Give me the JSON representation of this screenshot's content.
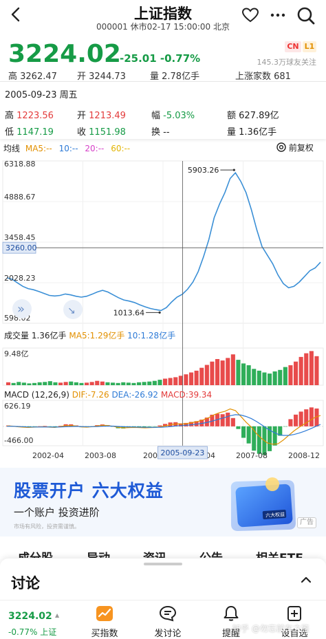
{
  "header": {
    "title": "上证指数",
    "subtitle": "000001 休市02-17 15:00:00 北京",
    "back_icon": "back-arrow-icon",
    "fav_icon": "heart-icon",
    "more_icon": "more-dots-icon",
    "search_icon": "search-icon"
  },
  "quote": {
    "price": "3224.02",
    "change": "-25.01 -0.77%",
    "badge_market": "CN",
    "badge_level": "L1",
    "followers": "145.3万球友关注"
  },
  "partial_row": {
    "high": "高 3262.47",
    "open": "开 3244.73",
    "volume": "量 2.78亿手",
    "rising": "上涨家数 681"
  },
  "info_card": {
    "date": "2005-09-23 周五",
    "high_label": "高",
    "high_value": "1223.56",
    "open_label": "开",
    "open_value": "1213.49",
    "amp_label": "幅",
    "amp_value": "-5.03%",
    "amount_label": "额",
    "amount_value": "627.89亿",
    "low_label": "低",
    "low_value": "1147.19",
    "close_label": "收",
    "close_value": "1151.98",
    "turnover_label": "换",
    "turnover_value": "--",
    "volume_label": "量",
    "volume_value": "1.36亿手"
  },
  "ma_legend": {
    "label": "均线",
    "ma5": "MA5:--",
    "ma10": "10:--",
    "ma20": "20:--",
    "ma60": "60:--",
    "fuquan": "前复权",
    "fuquan_icon": "settings-circle-icon"
  },
  "chart_data": {
    "type": "line",
    "y_ticks": [
      "6318.88",
      "4888.67",
      "3458.45",
      "2028.23",
      "598.02"
    ],
    "ylim": [
      598.02,
      6318.88
    ],
    "cursor_price": "3260.00",
    "high_annotation": "5903.26",
    "low_annotation": "1013.64",
    "x_ticks": [
      "2002-04",
      "2003-08",
      "2004-",
      "-04",
      "2007-08",
      "2008-12"
    ],
    "cursor_date": "2005-09-23",
    "series": [
      {
        "values": [
          2200,
          2150,
          2020,
          1900,
          1820,
          1780,
          1720,
          1650,
          1580,
          1560,
          1580,
          1630,
          1600,
          1550,
          1520,
          1550,
          1620,
          1700,
          1760,
          1700,
          1600,
          1500,
          1420,
          1380,
          1330,
          1250,
          1180,
          1120,
          1080,
          1050,
          1150,
          1350,
          1520,
          1620,
          1800,
          2050,
          2420,
          2950,
          3550,
          4320,
          4800,
          5200,
          5700,
          5903,
          5600,
          5200,
          4600,
          3900,
          3300,
          3000,
          2700,
          2300,
          2000,
          1850,
          1900,
          2050,
          2250,
          2450,
          2550,
          2750
        ]
      }
    ],
    "volume_label": "成交量",
    "volume_value": "1.36亿手",
    "volume_ma5": "MA5:1.29亿手",
    "volume_ma10": "10:1.28亿手",
    "volume_max": "9.48亿",
    "volume": [
      0.8,
      0.6,
      0.9,
      0.7,
      0.5,
      0.6,
      0.8,
      0.9,
      1.1,
      0.8,
      0.7,
      0.9,
      1.0,
      0.8,
      0.6,
      0.7,
      0.9,
      1.2,
      1.0,
      0.8,
      0.7,
      0.6,
      0.8,
      0.7,
      0.6,
      0.8,
      0.9,
      1.0,
      1.2,
      1.5,
      1.8,
      2.0,
      2.2,
      2.6,
      3.0,
      3.5,
      4.0,
      4.8,
      5.6,
      6.5,
      7.2,
      6.8,
      7.5,
      8.5,
      7.0,
      6.0,
      5.5,
      4.5,
      4.0,
      3.5,
      3.2,
      3.8,
      4.2,
      5.0,
      5.5,
      6.5,
      7.8,
      8.8,
      9.4,
      8.0
    ],
    "macd_label": "MACD",
    "macd_params": "(12,26,9)",
    "macd_dif": "DIF:-7.26",
    "macd_dea": "DEA:-26.92",
    "macd_value": "MACD:39.34",
    "macd_top": "626.19",
    "macd_bottom": "-466.00",
    "dif": [
      10,
      5,
      -10,
      -20,
      -25,
      -20,
      -15,
      -10,
      -20,
      -25,
      -10,
      15,
      20,
      10,
      -15,
      -20,
      -10,
      10,
      25,
      20,
      0,
      -25,
      -35,
      -30,
      -25,
      -30,
      -35,
      -30,
      -25,
      -10,
      15,
      45,
      60,
      55,
      70,
      95,
      120,
      160,
      210,
      280,
      330,
      360,
      420,
      380,
      240,
      100,
      -20,
      -180,
      -300,
      -400,
      -430,
      -420,
      -330,
      -220,
      -110,
      -20,
      60,
      140,
      220,
      260
    ],
    "dea": [
      0,
      2,
      -2,
      -8,
      -14,
      -16,
      -16,
      -15,
      -16,
      -18,
      -16,
      -10,
      -4,
      -1,
      -4,
      -7,
      -8,
      -4,
      2,
      6,
      5,
      -2,
      -9,
      -13,
      -16,
      -19,
      -22,
      -24,
      -24,
      -21,
      -14,
      -2,
      10,
      19,
      29,
      42,
      58,
      79,
      105,
      140,
      178,
      214,
      255,
      280,
      272,
      238,
      186,
      113,
      30,
      -56,
      -131,
      -189,
      -217,
      -218,
      -196,
      -161,
      -117,
      -65,
      -8,
      45
    ],
    "macd_hist": [
      20,
      6,
      -16,
      -24,
      -22,
      -8,
      2,
      10,
      -8,
      -14,
      12,
      50,
      48,
      22,
      -22,
      -26,
      -4,
      28,
      46,
      28,
      -10,
      -46,
      -52,
      -34,
      -18,
      -22,
      -26,
      -12,
      -2,
      22,
      58,
      94,
      100,
      72,
      82,
      106,
      124,
      162,
      210,
      280,
      304,
      292,
      330,
      200,
      -64,
      -276,
      -412,
      -586,
      -660,
      -688,
      -598,
      -462,
      -226,
      -4,
      172,
      282,
      354,
      410,
      456,
      430
    ]
  },
  "ad": {
    "title": "股票开户 六大权益",
    "subtitle": "一个账户 投资进阶",
    "note": "市场有风险，投资需谨慎。",
    "tag": "广告",
    "card_label": "六大权益"
  },
  "tabs": [
    "成分股",
    "异动",
    "资讯",
    "公告",
    "相关ETF"
  ],
  "sheet": {
    "title": "讨论",
    "chevron_icon": "chevron-up-icon"
  },
  "bottom_bar": {
    "price": "3224.02",
    "change": "-0.77% 上证",
    "items": [
      {
        "label": "买指数",
        "icon": "trend-chart-icon"
      },
      {
        "label": "发讨论",
        "icon": "chat-bubble-icon"
      },
      {
        "label": "提醒",
        "icon": "bell-icon"
      },
      {
        "label": "设自选",
        "icon": "add-watchlist-icon"
      }
    ]
  },
  "watermark": "知乎 @勿忘前车之鉴"
}
